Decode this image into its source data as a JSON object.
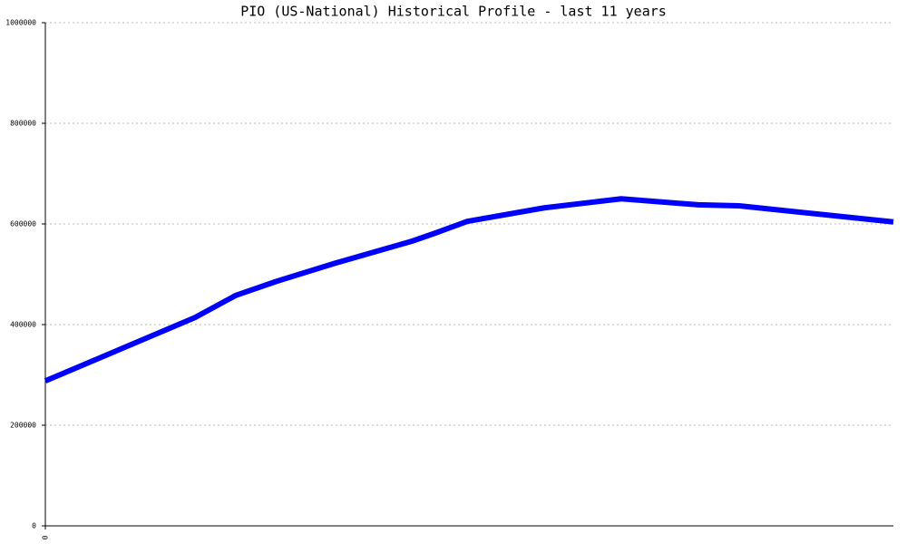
{
  "chart_data": {
    "type": "line",
    "title": "PIO (US-National) Historical Profile - last 11 years",
    "x": [
      0,
      1.94,
      2.47,
      3.0,
      3.76,
      4.76,
      5.06,
      5.47,
      6.47,
      7.47,
      8.47,
      9.0,
      11
    ],
    "series": [
      {
        "color": "#0000ff",
        "values": [
          288000,
          414000,
          458000,
          486000,
          522000,
          566000,
          582000,
          605000,
          632000,
          650000,
          638000,
          636000,
          604000
        ]
      }
    ],
    "xlim": [
      0,
      11
    ],
    "xticks": [
      0
    ],
    "ylim": [
      0,
      1000000
    ],
    "yticks": [
      0,
      200000,
      400000,
      600000,
      800000,
      1000000
    ],
    "grid": true
  }
}
